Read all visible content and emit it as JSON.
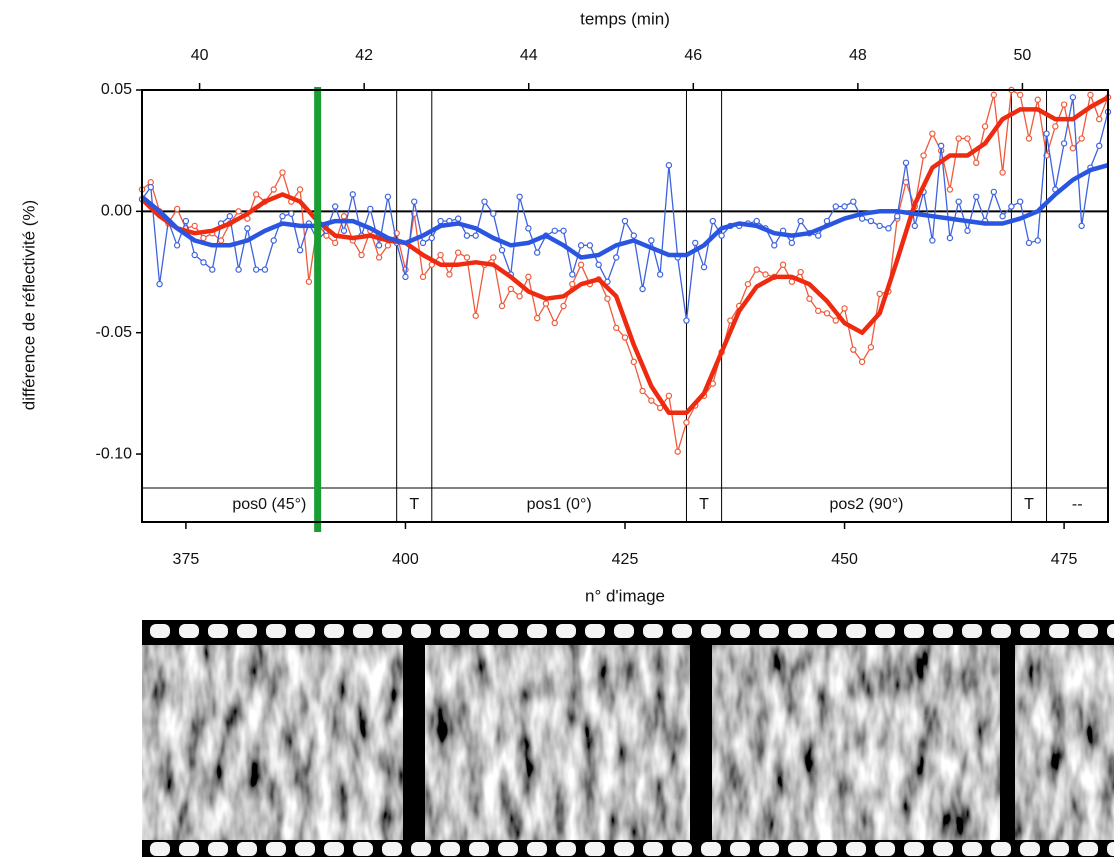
{
  "chart_data": {
    "type": "line",
    "x_label": "n° d'image",
    "x2_label": "temps (min)",
    "y_label": "différence de réflectivité (%)",
    "xlim": [
      370,
      480
    ],
    "xticks": [
      375,
      400,
      425,
      450,
      475
    ],
    "x2lim": [
      39.3,
      51.04
    ],
    "x2ticks": [
      40,
      42,
      44,
      46,
      48,
      50
    ],
    "ylim": [
      -0.128,
      0.05
    ],
    "yticks": [
      0.05,
      {
        "value": 0,
        "label": "0.00"
      },
      -0.05,
      {
        "value": -0.1,
        "label": "-0.10"
      }
    ],
    "zero_line": true,
    "marker": {
      "value": 390,
      "color": "#1a9e34"
    },
    "segments": [
      {
        "label": "pos0 (45°)",
        "start": 370,
        "end": 399
      },
      {
        "label": "T",
        "start": 399,
        "end": 403
      },
      {
        "label": "pos1 (0°)",
        "start": 403,
        "end": 432
      },
      {
        "label": "T",
        "start": 432,
        "end": 436
      },
      {
        "label": "pos2 (90°)",
        "start": 436,
        "end": 469
      },
      {
        "label": "T",
        "start": 469,
        "end": 473
      },
      {
        "label": "--",
        "start": 473,
        "end": 480
      }
    ],
    "series": [
      {
        "color": "#f05a3a",
        "markers": true,
        "line_width": 1.3,
        "x": [
          370,
          371,
          372,
          373,
          374,
          375,
          376,
          377,
          378,
          379,
          380,
          381,
          382,
          383,
          384,
          385,
          386,
          387,
          388,
          389,
          390,
          391,
          392,
          393,
          394,
          395,
          396,
          397,
          398,
          399,
          400,
          401,
          402,
          403,
          404,
          405,
          406,
          407,
          408,
          409,
          410,
          411,
          412,
          413,
          414,
          415,
          416,
          417,
          418,
          419,
          420,
          421,
          422,
          423,
          424,
          425,
          426,
          427,
          428,
          429,
          430,
          431,
          432,
          433,
          434,
          435,
          436,
          437,
          438,
          439,
          440,
          441,
          442,
          443,
          444,
          445,
          446,
          447,
          448,
          449,
          450,
          451,
          452,
          453,
          454,
          455,
          456,
          457,
          458,
          459,
          460,
          461,
          462,
          463,
          464,
          465,
          466,
          467,
          468,
          469,
          470,
          471,
          472,
          473,
          474,
          475,
          476,
          477,
          478,
          479,
          480
        ],
        "values": [
          0.009,
          0.012,
          0,
          -0.005,
          0.001,
          -0.007,
          -0.006,
          -0.011,
          -0.009,
          -0.012,
          -0.005,
          0,
          -0.003,
          0.007,
          0.004,
          0.009,
          0.016,
          0.004,
          0.009,
          -0.029,
          -0.005,
          -0.01,
          -0.013,
          -0.002,
          -0.012,
          -0.018,
          -0.008,
          -0.019,
          -0.014,
          -0.009,
          -0.024,
          -0.001,
          -0.027,
          -0.022,
          -0.018,
          -0.026,
          -0.017,
          -0.019,
          -0.043,
          -0.022,
          -0.019,
          -0.039,
          -0.032,
          -0.035,
          -0.027,
          -0.044,
          -0.038,
          -0.046,
          -0.039,
          -0.03,
          -0.022,
          -0.03,
          -0.028,
          -0.036,
          -0.048,
          -0.052,
          -0.062,
          -0.074,
          -0.078,
          -0.081,
          -0.076,
          -0.099,
          -0.087,
          -0.08,
          -0.076,
          -0.071,
          -0.058,
          -0.045,
          -0.039,
          -0.03,
          -0.024,
          -0.026,
          -0.027,
          -0.022,
          -0.029,
          -0.025,
          -0.036,
          -0.041,
          -0.042,
          -0.045,
          -0.04,
          -0.057,
          -0.062,
          -0.056,
          -0.034,
          -0.033,
          -0.003,
          0.012,
          0.002,
          0.023,
          0.032,
          0.025,
          0.009,
          0.03,
          0.03,
          0.02,
          0.035,
          0.048,
          0.016,
          0.05,
          0.048,
          0.03,
          0.046,
          0.023,
          0.035,
          0.044,
          0.026,
          0.03,
          0.048,
          0.038,
          0.047
        ]
      },
      {
        "color": "#3d63e0",
        "markers": true,
        "line_width": 1.3,
        "x": [
          370,
          371,
          372,
          373,
          374,
          375,
          376,
          377,
          378,
          379,
          380,
          381,
          382,
          383,
          384,
          385,
          386,
          387,
          388,
          389,
          390,
          391,
          392,
          393,
          394,
          395,
          396,
          397,
          398,
          399,
          400,
          401,
          402,
          403,
          404,
          405,
          406,
          407,
          408,
          409,
          410,
          411,
          412,
          413,
          414,
          415,
          416,
          417,
          418,
          419,
          420,
          421,
          422,
          423,
          424,
          425,
          426,
          427,
          428,
          429,
          430,
          431,
          432,
          433,
          434,
          435,
          436,
          437,
          438,
          439,
          440,
          441,
          442,
          443,
          444,
          445,
          446,
          447,
          448,
          449,
          450,
          451,
          452,
          453,
          454,
          455,
          456,
          457,
          458,
          459,
          460,
          461,
          462,
          463,
          464,
          465,
          466,
          467,
          468,
          469,
          470,
          471,
          472,
          473,
          474,
          475,
          476,
          477,
          478,
          479,
          480
        ],
        "values": [
          0.005,
          0.01,
          -0.03,
          -0.004,
          -0.014,
          -0.004,
          -0.018,
          -0.021,
          -0.024,
          -0.005,
          -0.002,
          -0.024,
          -0.007,
          -0.024,
          -0.024,
          -0.012,
          -0.002,
          -0.001,
          -0.016,
          -0.005,
          -0.012,
          -0.008,
          0.002,
          -0.008,
          0.007,
          -0.01,
          0.001,
          -0.014,
          0.006,
          -0.013,
          -0.027,
          0.004,
          -0.013,
          -0.011,
          -0.004,
          -0.004,
          -0.003,
          -0.01,
          -0.01,
          0.004,
          -0.001,
          -0.016,
          -0.026,
          0.006,
          -0.007,
          -0.017,
          -0.01,
          -0.008,
          -0.008,
          -0.026,
          -0.014,
          -0.014,
          -0.022,
          -0.029,
          -0.019,
          -0.004,
          -0.01,
          -0.032,
          -0.012,
          -0.026,
          0.019,
          -0.019,
          -0.045,
          -0.013,
          -0.023,
          -0.004,
          -0.01,
          -0.006,
          -0.006,
          -0.005,
          -0.004,
          -0.007,
          -0.014,
          -0.008,
          -0.013,
          -0.004,
          -0.009,
          -0.01,
          -0.004,
          0.002,
          0.002,
          0.004,
          -0.003,
          -0.004,
          -0.006,
          -0.007,
          -0.002,
          0.02,
          -0.006,
          0.008,
          -0.012,
          0.027,
          -0.011,
          0.004,
          -0.008,
          0.006,
          -0.004,
          0.008,
          -0.002,
          0.002,
          0.004,
          -0.013,
          -0.012,
          0.032,
          0.009,
          0.028,
          0.047,
          -0.006,
          0.018,
          0.027,
          0.041
        ]
      },
      {
        "color": "#ee2a10",
        "markers": false,
        "line_width": 4.5,
        "x": [
          370,
          372,
          374,
          376,
          378,
          380,
          382,
          384,
          386,
          388,
          390,
          392,
          394,
          396,
          398,
          400,
          402,
          404,
          406,
          408,
          410,
          412,
          414,
          416,
          418,
          420,
          422,
          424,
          426,
          428,
          430,
          432,
          434,
          436,
          438,
          440,
          442,
          444,
          446,
          448,
          450,
          452,
          454,
          456,
          458,
          460,
          462,
          464,
          466,
          468,
          470,
          472,
          474,
          476,
          478,
          480
        ],
        "values": [
          0.005,
          -0.002,
          -0.007,
          -0.009,
          -0.008,
          -0.005,
          -0.001,
          0.004,
          0.007,
          0.004,
          -0.004,
          -0.01,
          -0.011,
          -0.01,
          -0.012,
          -0.013,
          -0.018,
          -0.022,
          -0.022,
          -0.021,
          -0.022,
          -0.027,
          -0.033,
          -0.036,
          -0.035,
          -0.03,
          -0.028,
          -0.035,
          -0.055,
          -0.072,
          -0.083,
          -0.083,
          -0.075,
          -0.058,
          -0.041,
          -0.031,
          -0.027,
          -0.027,
          -0.03,
          -0.037,
          -0.046,
          -0.05,
          -0.042,
          -0.02,
          0.003,
          0.018,
          0.023,
          0.023,
          0.028,
          0.038,
          0.042,
          0.042,
          0.038,
          0.038,
          0.043,
          0.047
        ]
      },
      {
        "color": "#2a55e0",
        "markers": false,
        "line_width": 4.5,
        "x": [
          370,
          372,
          374,
          376,
          378,
          380,
          382,
          384,
          386,
          388,
          390,
          392,
          394,
          396,
          398,
          400,
          402,
          404,
          406,
          408,
          410,
          412,
          414,
          416,
          418,
          420,
          422,
          424,
          426,
          428,
          430,
          432,
          434,
          436,
          438,
          440,
          442,
          444,
          446,
          448,
          450,
          452,
          454,
          456,
          458,
          460,
          462,
          464,
          466,
          468,
          470,
          472,
          474,
          476,
          478,
          480
        ],
        "values": [
          0.006,
          0,
          -0.007,
          -0.012,
          -0.014,
          -0.014,
          -0.012,
          -0.008,
          -0.005,
          -0.006,
          -0.006,
          -0.004,
          -0.004,
          -0.007,
          -0.011,
          -0.013,
          -0.01,
          -0.006,
          -0.005,
          -0.007,
          -0.011,
          -0.014,
          -0.013,
          -0.01,
          -0.014,
          -0.019,
          -0.018,
          -0.014,
          -0.012,
          -0.015,
          -0.018,
          -0.018,
          -0.014,
          -0.007,
          -0.005,
          -0.006,
          -0.009,
          -0.01,
          -0.009,
          -0.006,
          -0.003,
          -0.001,
          0,
          0,
          -0.001,
          -0.002,
          -0.003,
          -0.004,
          -0.005,
          -0.005,
          -0.003,
          0,
          0.007,
          0.013,
          0.017,
          0.019
        ]
      }
    ]
  }
}
